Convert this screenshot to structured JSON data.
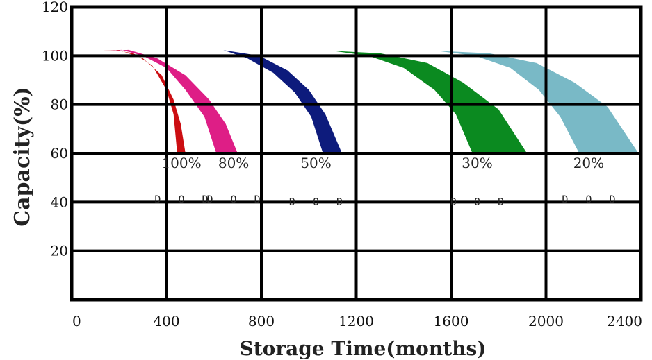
{
  "chart_data": {
    "type": "area",
    "xlabel": "Storage Time(months)",
    "ylabel": "Capacity(%)",
    "xlim": [
      0,
      2400
    ],
    "ylim": [
      0,
      120
    ],
    "x_ticks": [
      0,
      400,
      800,
      1200,
      1600,
      2000,
      2400
    ],
    "y_ticks": [
      20,
      40,
      60,
      80,
      100,
      120
    ],
    "grid": true,
    "series": [
      {
        "name": "100%",
        "name_line2": "D O D",
        "color": "#cc0e12",
        "upper": [
          [
            120,
            102
          ],
          [
            180,
            102.3
          ],
          [
            260,
            101
          ],
          [
            340,
            96
          ],
          [
            400,
            86
          ],
          [
            430,
            76
          ],
          [
            445,
            60
          ]
        ],
        "lower": [
          [
            120,
            102
          ],
          [
            200,
            102.3
          ],
          [
            300,
            99
          ],
          [
            380,
            92
          ],
          [
            430,
            82
          ],
          [
            460,
            72
          ],
          [
            480,
            60
          ]
        ]
      },
      {
        "name": "80%",
        "name_line2": "D O D",
        "color": "#de1e86",
        "upper": [
          [
            150,
            102
          ],
          [
            210,
            102.4
          ],
          [
            300,
            100
          ],
          [
            400,
            95
          ],
          [
            480,
            86
          ],
          [
            560,
            75
          ],
          [
            610,
            60
          ]
        ],
        "lower": [
          [
            150,
            102
          ],
          [
            240,
            102.4
          ],
          [
            360,
            99
          ],
          [
            480,
            92
          ],
          [
            580,
            82
          ],
          [
            650,
            72
          ],
          [
            700,
            60
          ]
        ]
      },
      {
        "name": "50%",
        "name_line2": "D O D",
        "color": "#0d1b7c",
        "upper": [
          [
            640,
            102.3
          ],
          [
            740,
            99
          ],
          [
            850,
            93
          ],
          [
            940,
            85
          ],
          [
            1010,
            75
          ],
          [
            1060,
            60
          ]
        ],
        "lower": [
          [
            640,
            102.3
          ],
          [
            790,
            100
          ],
          [
            910,
            94
          ],
          [
            1000,
            86
          ],
          [
            1070,
            76
          ],
          [
            1140,
            60
          ]
        ]
      },
      {
        "name": "30%",
        "name_line2": "D O D",
        "color": "#0b8a20",
        "upper": [
          [
            1100,
            102
          ],
          [
            1250,
            100
          ],
          [
            1400,
            95
          ],
          [
            1530,
            86
          ],
          [
            1620,
            76
          ],
          [
            1690,
            60
          ]
        ],
        "lower": [
          [
            1100,
            102
          ],
          [
            1300,
            101
          ],
          [
            1500,
            97
          ],
          [
            1650,
            89
          ],
          [
            1800,
            78
          ],
          [
            1920,
            60
          ]
        ]
      },
      {
        "name": "20%",
        "name_line2": "D O D",
        "color": "#79b9c6",
        "upper": [
          [
            1540,
            102
          ],
          [
            1700,
            100
          ],
          [
            1850,
            95
          ],
          [
            1970,
            86
          ],
          [
            2060,
            75
          ],
          [
            2140,
            60
          ]
        ],
        "lower": [
          [
            1540,
            102
          ],
          [
            1760,
            101
          ],
          [
            1960,
            97
          ],
          [
            2120,
            89
          ],
          [
            2260,
            79
          ],
          [
            2390,
            60
          ]
        ]
      }
    ],
    "annotations": [
      {
        "text": "100%",
        "line2": "D O D"
      },
      {
        "text": "80%",
        "line2": "D O D"
      },
      {
        "text": "50%",
        "line2": "D O D"
      },
      {
        "text": "30%",
        "line2": "D O D"
      },
      {
        "text": "20%",
        "line2": "D O D"
      }
    ]
  }
}
